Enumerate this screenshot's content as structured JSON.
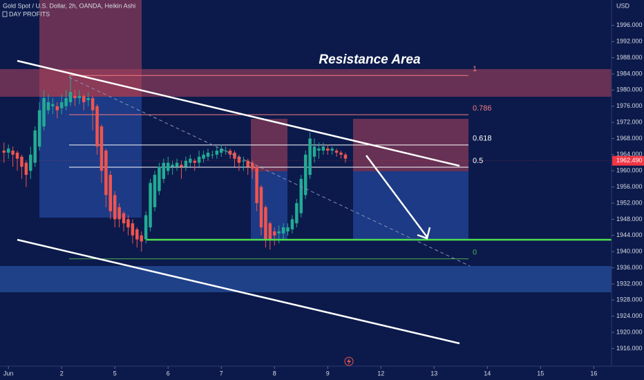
{
  "header": {
    "title": "Gold Spot / U.S. Dollar, 2h, OANDA, Heikin Ashi",
    "indicator": "DAY PROFITS",
    "currency": "USD"
  },
  "chart_data": {
    "type": "candlestick",
    "annotation": "Resistance Area",
    "x": [
      0,
      1,
      2,
      3,
      4,
      5,
      6,
      7,
      8,
      9,
      10,
      11,
      12,
      13,
      14,
      15,
      16,
      17,
      18,
      19,
      20,
      21,
      22,
      23,
      24,
      25,
      26,
      27,
      28,
      29,
      30,
      31,
      32,
      33,
      34,
      35,
      36,
      37,
      38,
      39,
      40,
      41,
      42,
      43,
      44,
      45,
      46,
      47,
      48,
      49,
      50,
      51,
      52,
      53,
      54,
      55,
      56,
      57,
      58,
      59,
      60,
      61,
      62,
      63,
      64,
      65,
      66,
      67,
      68,
      69,
      70,
      71,
      72,
      73,
      74,
      75,
      76,
      77
    ],
    "open": [
      1965,
      1964.5,
      1965,
      1964.5,
      1963.5,
      1962,
      1960,
      1962,
      1966,
      1971,
      1975,
      1976,
      1976,
      1975.5,
      1976,
      1977,
      1978.5,
      1978,
      1978.5,
      1977.5,
      1978,
      1976,
      1971,
      1965,
      1959,
      1954,
      1951,
      1949.5,
      1948,
      1947,
      1945.5,
      1944,
      1943,
      1946,
      1951,
      1955,
      1958,
      1960,
      1961,
      1961,
      1961.5,
      1961,
      1962,
      1962.5,
      1962,
      1963,
      1963.5,
      1964,
      1964,
      1964.5,
      1965,
      1965,
      1964.5,
      1963.5,
      1962.5,
      1962.5,
      1962,
      1961,
      1956,
      1951,
      1947,
      1945,
      1944.5,
      1944.5,
      1945,
      1945.5,
      1947,
      1949.5,
      1954,
      1959,
      1963.5,
      1965,
      1965,
      1965.5,
      1965,
      1965,
      1964.5,
      1964
    ],
    "close": [
      1964.5,
      1965.5,
      1964,
      1963,
      1961,
      1959,
      1964,
      1970,
      1975,
      1978,
      1977,
      1976.5,
      1975,
      1977,
      1978,
      1979.5,
      1978,
      1978.5,
      1977,
      1978,
      1975,
      1966,
      1960,
      1954,
      1950,
      1948,
      1948,
      1947,
      1946,
      1944,
      1943,
      1942.5,
      1949,
      1957,
      1959,
      1961,
      1962,
      1962,
      1961.5,
      1962,
      1961,
      1962.5,
      1963,
      1962,
      1963.5,
      1964,
      1964.5,
      1964,
      1965,
      1965.5,
      1965,
      1964,
      1963,
      1962,
      1962.5,
      1961,
      1960.5,
      1952,
      1946,
      1943,
      1943,
      1944,
      1945,
      1946,
      1946,
      1948,
      1952,
      1958,
      1964,
      1968,
      1966,
      1965.5,
      1966,
      1965,
      1965.5,
      1964.5,
      1964,
      1963
    ],
    "high": [
      1967,
      1966.5,
      1966,
      1965,
      1964,
      1962.5,
      1966,
      1971,
      1977,
      1980,
      1979,
      1978,
      1977,
      1979,
      1980,
      1983.5,
      1980,
      1980,
      1979,
      1979.5,
      1978.5,
      1976.5,
      1971.5,
      1965.5,
      1960,
      1955,
      1952,
      1950,
      1949,
      1948,
      1946,
      1945,
      1950,
      1958,
      1960,
      1962,
      1963,
      1963.5,
      1962.5,
      1963,
      1962.5,
      1963.5,
      1964,
      1963,
      1965,
      1965,
      1965.5,
      1965,
      1966,
      1966.5,
      1966,
      1965.5,
      1965,
      1964,
      1963.5,
      1963,
      1962.5,
      1961.5,
      1956.5,
      1951.5,
      1947.5,
      1946,
      1946.5,
      1947,
      1947,
      1949,
      1953,
      1959,
      1965,
      1969.5,
      1968,
      1967,
      1967,
      1966.5,
      1966,
      1965.5,
      1965,
      1964.5
    ],
    "low": [
      1962,
      1963,
      1961,
      1960,
      1958,
      1956,
      1958,
      1961,
      1965,
      1970,
      1974,
      1974,
      1973,
      1974,
      1975,
      1976,
      1976,
      1976.5,
      1975,
      1976,
      1970,
      1964,
      1957,
      1951,
      1948,
      1946,
      1946,
      1945,
      1944,
      1942,
      1941,
      1940,
      1942,
      1945,
      1950,
      1954,
      1957,
      1959,
      1959,
      1960,
      1958,
      1960,
      1961,
      1960,
      1961,
      1962,
      1962.5,
      1963,
      1963,
      1963.5,
      1964,
      1963,
      1961,
      1960,
      1960,
      1959,
      1958,
      1950,
      1944,
      1941,
      1940.5,
      1941.5,
      1942,
      1943,
      1944,
      1944.5,
      1946,
      1948.5,
      1953,
      1958,
      1962,
      1963,
      1964,
      1964,
      1964,
      1963.5,
      1963,
      1962
    ],
    "up_color": "#22ab94",
    "down_color": "#f0544f",
    "last_price": {
      "value": 1962.49,
      "label": "1962.490"
    },
    "fib_levels": [
      {
        "label": "1",
        "value": 1983.6,
        "color": "#f77c80"
      },
      {
        "label": "0.786",
        "value": 1973.9,
        "color": "#f77c80"
      },
      {
        "label": "0.618",
        "value": 1966.4,
        "color": "#ffffff"
      },
      {
        "label": "0.5",
        "value": 1960.9,
        "color": "#ffffff"
      },
      {
        "label": "0",
        "value": 1938.2,
        "color": "#4caf50"
      }
    ],
    "xlim": [
      -0.9,
      137
    ],
    "xticks": [
      {
        "value": 1,
        "label": "Jun"
      },
      {
        "value": 13,
        "label": "2"
      },
      {
        "value": 25,
        "label": "5"
      },
      {
        "value": 37,
        "label": "6"
      },
      {
        "value": 49,
        "label": "7"
      },
      {
        "value": 61,
        "label": "8"
      },
      {
        "value": 73,
        "label": "9"
      },
      {
        "value": 85,
        "label": "12"
      },
      {
        "value": 97,
        "label": "13"
      },
      {
        "value": 109,
        "label": "14"
      },
      {
        "value": 121,
        "label": "15"
      },
      {
        "value": 133,
        "label": "16"
      }
    ],
    "ylim": [
      1908.2,
      2002.3
    ],
    "yticks": [
      {
        "value": 1916,
        "label": "1916.000"
      },
      {
        "value": 1920,
        "label": "1920.000"
      },
      {
        "value": 1924,
        "label": "1924.000"
      },
      {
        "value": 1928,
        "label": "1928.000"
      },
      {
        "value": 1932,
        "label": "1932.000"
      },
      {
        "value": 1936,
        "label": "1936.000"
      },
      {
        "value": 1940,
        "label": "1940.000"
      },
      {
        "value": 1944,
        "label": "1944.000"
      },
      {
        "value": 1948,
        "label": "1948.000"
      },
      {
        "value": 1952,
        "label": "1952.000"
      },
      {
        "value": 1956,
        "label": "1956.000"
      },
      {
        "value": 1960,
        "label": "1960.000"
      },
      {
        "value": 1964,
        "label": "1964.000"
      },
      {
        "value": 1968,
        "label": "1968.000"
      },
      {
        "value": 1972,
        "label": "1972.000"
      },
      {
        "value": 1976,
        "label": "1976.000"
      },
      {
        "value": 1980,
        "label": "1980.000"
      },
      {
        "value": 1984,
        "label": "1984.000"
      },
      {
        "value": 1988,
        "label": "1988.000"
      },
      {
        "value": 1992,
        "label": "1992.000"
      },
      {
        "value": 1996,
        "label": "1996.000"
      }
    ]
  }
}
